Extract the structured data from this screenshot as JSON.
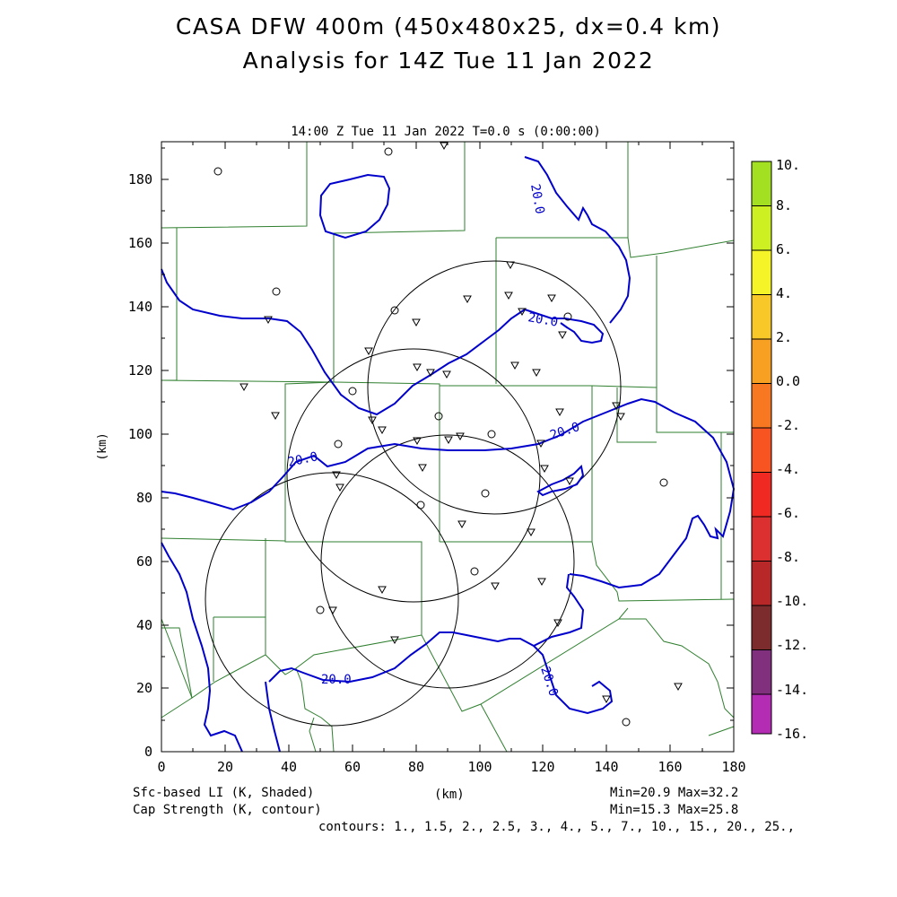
{
  "title": {
    "line1": "CASA DFW 400m (450x480x25, dx=0.4 km)",
    "line2": "Analysis for 14Z Tue 11 Jan 2022"
  },
  "subtitle": "14:00 Z Tue 11 Jan 2022   T=0.0 s (0:00:00)",
  "axes": {
    "x_label": "(km)",
    "y_label": "(km)",
    "x_ticks": [
      "0",
      "20",
      "40",
      "60",
      "80",
      "100",
      "120",
      "140",
      "160",
      "180"
    ],
    "y_ticks": [
      "0",
      "20",
      "40",
      "60",
      "80",
      "100",
      "120",
      "140",
      "160",
      "180"
    ],
    "x_range": [
      0,
      180
    ],
    "y_range": [
      0,
      192
    ]
  },
  "footer": {
    "left1": "Sfc-based LI (K, Shaded)",
    "left2": "Cap Strength (K, contour)",
    "center": "(km)",
    "right1": "Min=20.9 Max=32.2",
    "right2": "Min=15.3 Max=25.8",
    "contours": "contours: 1., 1.5, 2., 2.5, 3., 4., 5., 7., 10., 15., 20., 25.,"
  },
  "colorbar": {
    "labels": [
      "10.",
      "8.",
      "6.",
      "4.",
      "2.",
      "0.0",
      "-2.",
      "-4.",
      "-6.",
      "-8.",
      "-10.",
      "-12.",
      "-14.",
      "-16."
    ],
    "colors": [
      "#a4e022",
      "#ccf022",
      "#f4f428",
      "#f8c828",
      "#f8a022",
      "#f87822",
      "#f85422",
      "#f02a22",
      "#dc3030",
      "#b82828",
      "#7c2c2c",
      "#80307c",
      "#b42cb4",
      "#dc3cdc"
    ]
  },
  "contour_labels": [
    "20.0",
    "20.0",
    "20.0",
    "20.0",
    "20.0",
    "20.0"
  ],
  "colors": {
    "contour": "#0000cc",
    "boundary": "#2f7f2f",
    "radar_ring": "#000000"
  }
}
